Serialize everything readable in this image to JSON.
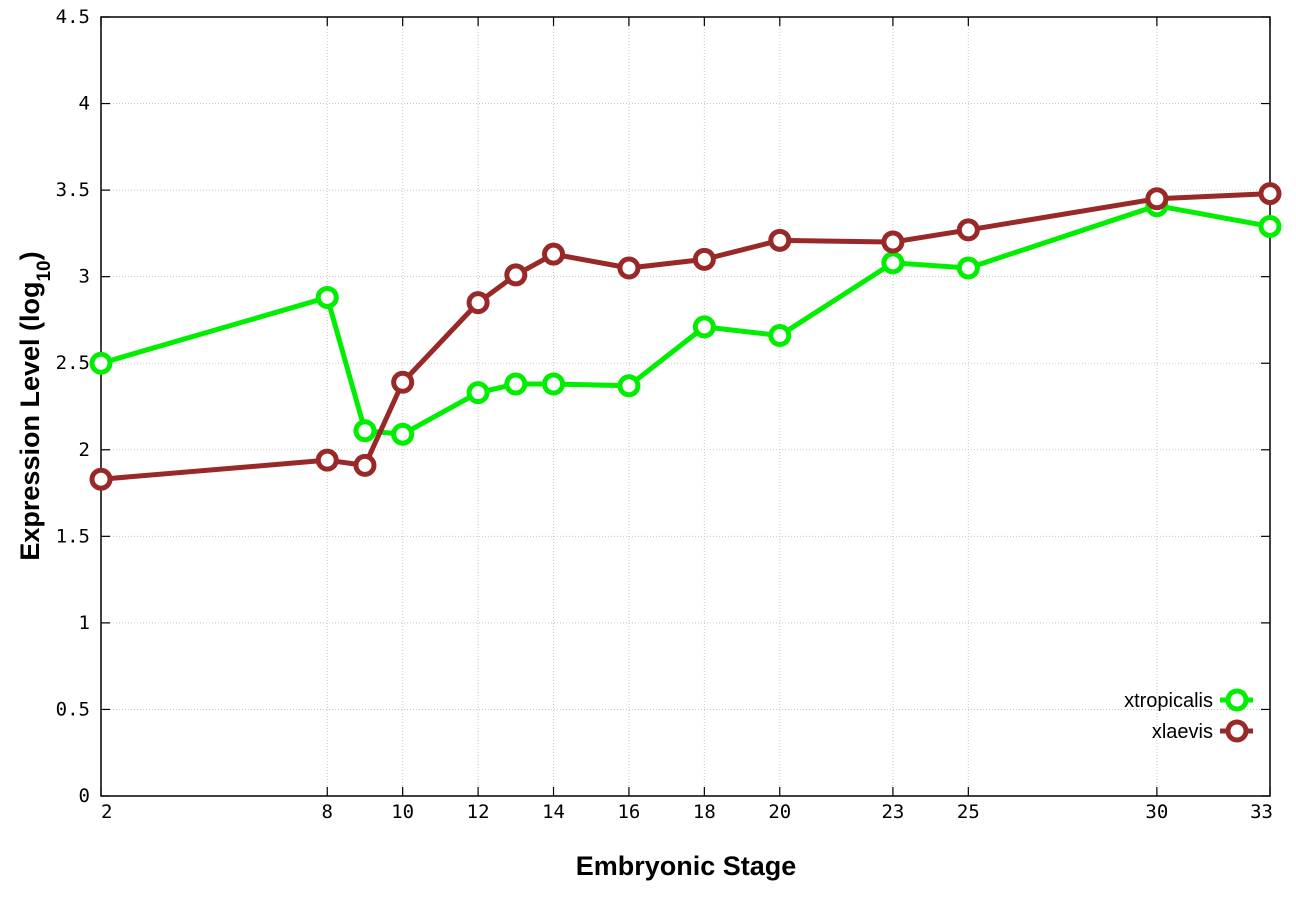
{
  "chart_data": {
    "type": "line",
    "xlabel": "Embryonic Stage",
    "ylabel_main": "Expression Level (log",
    "ylabel_sub": "10",
    "ylabel_close": ")",
    "xlim": [
      2,
      33
    ],
    "ylim": [
      0,
      4.5
    ],
    "x_ticks": [
      2,
      8,
      10,
      12,
      14,
      16,
      18,
      20,
      23,
      25,
      30,
      33
    ],
    "y_ticks": [
      0,
      0.5,
      1,
      1.5,
      2,
      2.5,
      3,
      3.5,
      4,
      4.5
    ],
    "y_tick_labels": [
      "0",
      "0.5",
      "1",
      "1.5",
      "2",
      "2.5",
      "3",
      "3.5",
      "4",
      "4.5"
    ],
    "x_tick_labels": [
      "2",
      "8",
      "10",
      "12",
      "14",
      "16",
      "18",
      "20",
      "23",
      "25",
      "30",
      "33"
    ],
    "grid": true,
    "legend_position": "bottom-right",
    "x": [
      2,
      8,
      9,
      10,
      12,
      13,
      14,
      16,
      18,
      20,
      23,
      25,
      30,
      33
    ],
    "series": [
      {
        "name": "xtropicalis",
        "color": "#00ee00",
        "values": [
          2.5,
          2.88,
          2.11,
          2.09,
          2.33,
          2.38,
          2.38,
          2.37,
          2.71,
          2.66,
          3.08,
          3.05,
          3.41,
          3.29
        ]
      },
      {
        "name": "xlaevis",
        "color": "#992828",
        "values": [
          1.83,
          1.94,
          1.91,
          2.39,
          2.85,
          3.01,
          3.13,
          3.05,
          3.1,
          3.21,
          3.2,
          3.27,
          3.45,
          3.48
        ]
      }
    ]
  }
}
